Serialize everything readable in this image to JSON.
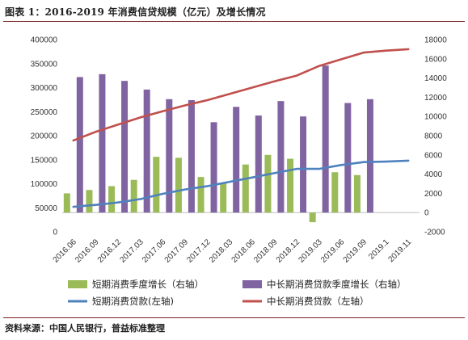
{
  "title": "图表 1：2016-2019 年消费信贷规模（亿元）及增长情况",
  "source": "资料来源：中国人民银行，普益标准整理",
  "colors": {
    "short_growth": "#9bbb59",
    "long_growth": "#8064a2",
    "short_loan": "#4f81bd",
    "long_loan": "#c0504d",
    "rule": "#7a1f1f"
  },
  "chart_data": {
    "type": "bar",
    "categories": [
      "2016.06",
      "2016.09",
      "2016.12",
      "2017.03",
      "2017.06",
      "2017.09",
      "2017.12",
      "2018.03",
      "2018.06",
      "2018.09",
      "2018.12",
      "2019.03",
      "2019.06",
      "2019.09",
      "2019.1",
      "2019.11"
    ],
    "left_axis": {
      "ylim": [
        0,
        400000
      ],
      "ticks": [
        0,
        50000,
        100000,
        150000,
        200000,
        250000,
        300000,
        350000,
        400000
      ]
    },
    "right_axis": {
      "ylim": [
        -2000,
        18000
      ],
      "ticks": [
        -2000,
        0,
        2000,
        4000,
        6000,
        8000,
        10000,
        12000,
        14000,
        16000,
        18000
      ]
    },
    "series": [
      {
        "name": "短期消费季度增长（右轴）",
        "type": "bar",
        "axis": "right",
        "color": "#9bbb59",
        "values": [
          2000,
          2350,
          2750,
          3400,
          5800,
          5700,
          3700,
          3100,
          5000,
          6000,
          5600,
          -1000,
          4200,
          3900,
          null,
          null
        ]
      },
      {
        "name": "中长期消费贷款季度增长（右轴）",
        "type": "bar",
        "axis": "right",
        "color": "#8064a2",
        "values": [
          14100,
          14400,
          13700,
          12800,
          11800,
          11700,
          9400,
          11000,
          10100,
          11600,
          10000,
          15300,
          11400,
          11800,
          null,
          null
        ]
      },
      {
        "name": "短期消费贷款(左轴)",
        "type": "line",
        "axis": "left",
        "color": "#4f81bd",
        "values": [
          52000,
          56000,
          61000,
          68000,
          79000,
          88000,
          95000,
          104000,
          113000,
          122000,
          131000,
          131000,
          139000,
          145000,
          146000,
          148000
        ]
      },
      {
        "name": "中长期消费贷款（左轴）",
        "type": "line",
        "axis": "left",
        "color": "#c0504d",
        "values": [
          190000,
          208000,
          223000,
          238000,
          251000,
          263000,
          274000,
          287000,
          300000,
          313000,
          325000,
          345000,
          359000,
          373000,
          377000,
          380000
        ]
      }
    ],
    "legend_position": "bottom",
    "grid": false
  }
}
